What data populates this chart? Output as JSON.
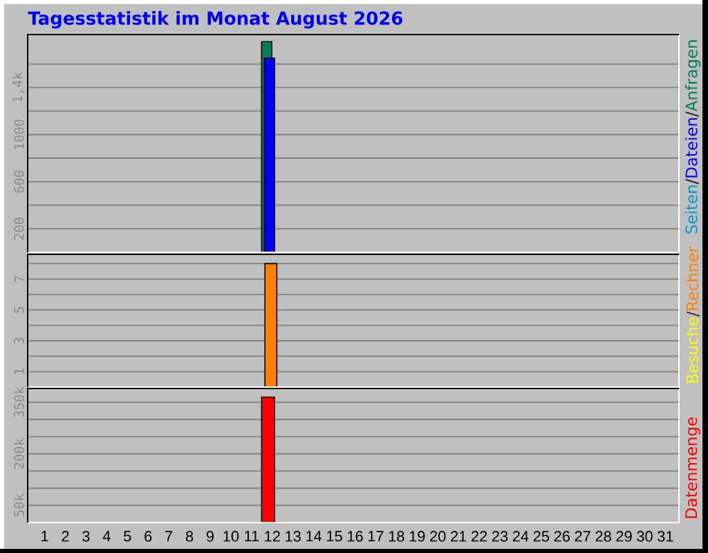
{
  "chart_data": [
    {
      "type": "bar",
      "title": "Tagesstatistik im Monat August 2026",
      "categories": [
        "1",
        "2",
        "3",
        "4",
        "5",
        "6",
        "7",
        "8",
        "9",
        "10",
        "11",
        "12",
        "13",
        "14",
        "15",
        "16",
        "17",
        "18",
        "19",
        "20",
        "21",
        "22",
        "23",
        "24",
        "25",
        "26",
        "27",
        "28",
        "29",
        "30",
        "31"
      ],
      "series": [
        {
          "name": "Seiten",
          "color": "#0099cc",
          "values": [
            null,
            null,
            null,
            null,
            null,
            null,
            null,
            null,
            null,
            null,
            null,
            null,
            null,
            null,
            null,
            null,
            null,
            null,
            null,
            null,
            null,
            null,
            null,
            null,
            null,
            null,
            null,
            null,
            null,
            null,
            null
          ]
        },
        {
          "name": "Dateien",
          "color": "#0000ff",
          "values": [
            null,
            null,
            null,
            null,
            null,
            null,
            null,
            null,
            null,
            null,
            null,
            1650,
            null,
            null,
            null,
            null,
            null,
            null,
            null,
            null,
            null,
            null,
            null,
            null,
            null,
            null,
            null,
            null,
            null,
            null,
            null
          ]
        },
        {
          "name": "Anfragen",
          "color": "#00805c",
          "values": [
            null,
            null,
            null,
            null,
            null,
            null,
            null,
            null,
            null,
            null,
            null,
            1790,
            null,
            null,
            null,
            null,
            null,
            null,
            null,
            null,
            null,
            null,
            null,
            null,
            null,
            null,
            null,
            null,
            null,
            null,
            null
          ]
        }
      ],
      "annotations": [
        "/",
        "/"
      ],
      "ylim": [
        0,
        1850
      ],
      "yticks": [
        200,
        {
          "value": 400,
          "label": null
        },
        600,
        {
          "value": 800,
          "label": null
        },
        1000,
        {
          "value": 1200,
          "label": null
        },
        {
          "value": 1400,
          "label": "1,4k"
        },
        {
          "value": 1600,
          "label": null
        }
      ],
      "grid": "y",
      "legend": "right",
      "tick_labels": "y"
    },
    {
      "type": "bar",
      "categories": [
        "1",
        "2",
        "3",
        "4",
        "5",
        "6",
        "7",
        "8",
        "9",
        "10",
        "11",
        "12",
        "13",
        "14",
        "15",
        "16",
        "17",
        "18",
        "19",
        "20",
        "21",
        "22",
        "23",
        "24",
        "25",
        "26",
        "27",
        "28",
        "29",
        "30",
        "31"
      ],
      "series": [
        {
          "name": "Besuche",
          "color": "#ffff00",
          "values": [
            null,
            null,
            null,
            null,
            null,
            null,
            null,
            null,
            null,
            null,
            null,
            null,
            null,
            null,
            null,
            null,
            null,
            null,
            null,
            null,
            null,
            null,
            null,
            null,
            null,
            null,
            null,
            null,
            null,
            null,
            null
          ]
        },
        {
          "name": "Rechner",
          "color": "#ff8000",
          "values": [
            null,
            null,
            null,
            null,
            null,
            null,
            null,
            null,
            null,
            null,
            null,
            8,
            null,
            null,
            null,
            null,
            null,
            null,
            null,
            null,
            null,
            null,
            null,
            null,
            null,
            null,
            null,
            null,
            null,
            null,
            null
          ]
        }
      ],
      "annotations": [
        "/"
      ],
      "ylim": [
        0,
        8.6
      ],
      "yticks": [
        1,
        {
          "value": 2,
          "label": null
        },
        3,
        {
          "value": 4,
          "label": null
        },
        5,
        {
          "value": 6,
          "label": null
        },
        7,
        {
          "value": 8,
          "label": null
        }
      ],
      "grid": "y",
      "legend": "right",
      "tick_labels": "y"
    },
    {
      "type": "bar",
      "categories": [
        "1",
        "2",
        "3",
        "4",
        "5",
        "6",
        "7",
        "8",
        "9",
        "10",
        "11",
        "12",
        "13",
        "14",
        "15",
        "16",
        "17",
        "18",
        "19",
        "20",
        "21",
        "22",
        "23",
        "24",
        "25",
        "26",
        "27",
        "28",
        "29",
        "30",
        "31"
      ],
      "series": [
        {
          "name": "Datenmenge",
          "color": "#ff0000",
          "values": [
            null,
            null,
            null,
            null,
            null,
            null,
            null,
            null,
            null,
            null,
            null,
            365000,
            null,
            null,
            null,
            null,
            null,
            null,
            null,
            null,
            null,
            null,
            null,
            null,
            null,
            null,
            null,
            null,
            null,
            null,
            null
          ]
        }
      ],
      "ylim": [
        0,
        390000
      ],
      "yticks": [
        {
          "value": 50000,
          "label": "50k"
        },
        {
          "value": 100000,
          "label": null
        },
        {
          "value": 150000,
          "label": null
        },
        {
          "value": 200000,
          "label": "200k"
        },
        {
          "value": 250000,
          "label": null
        },
        {
          "value": 300000,
          "label": null
        },
        {
          "value": 350000,
          "label": "350k"
        }
      ],
      "grid": "y",
      "legend": "right"
    }
  ]
}
